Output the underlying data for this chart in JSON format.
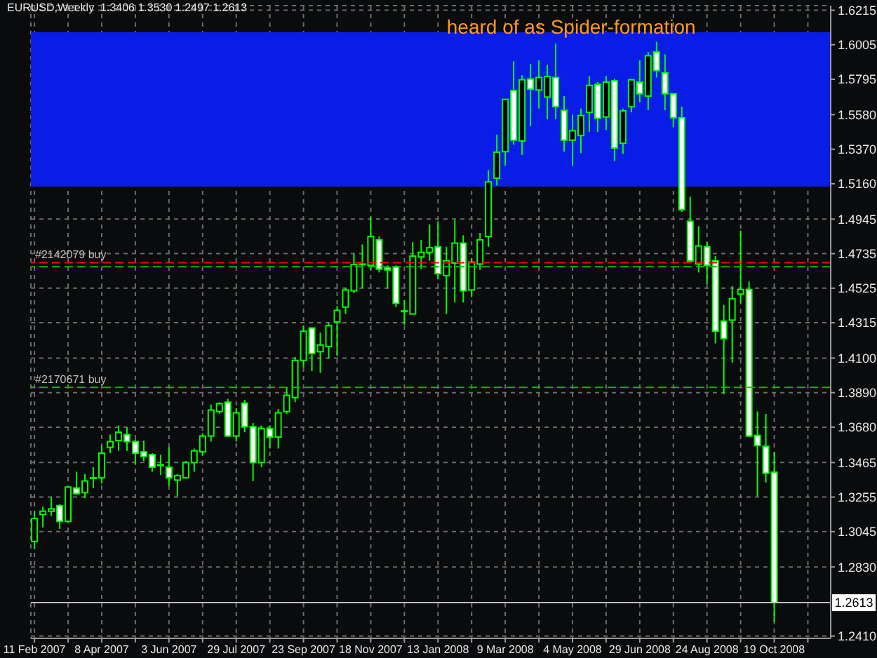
{
  "chart_data": {
    "type": "candlestick",
    "title": "EURUSD,Weekly  1.3406 1.3530 1.2497 1.2613",
    "x": [
      "2007-02-11",
      "2007-02-18",
      "2007-02-25",
      "2007-03-04",
      "2007-03-11",
      "2007-03-18",
      "2007-03-25",
      "2007-04-01",
      "2007-04-08",
      "2007-04-15",
      "2007-04-22",
      "2007-04-29",
      "2007-05-06",
      "2007-05-13",
      "2007-05-20",
      "2007-05-27",
      "2007-06-03",
      "2007-06-10",
      "2007-06-17",
      "2007-06-24",
      "2007-07-01",
      "2007-07-08",
      "2007-07-15",
      "2007-07-22",
      "2007-07-29",
      "2007-08-05",
      "2007-08-12",
      "2007-08-19",
      "2007-08-26",
      "2007-09-02",
      "2007-09-09",
      "2007-09-16",
      "2007-09-23",
      "2007-09-30",
      "2007-10-07",
      "2007-10-14",
      "2007-10-21",
      "2007-10-28",
      "2007-11-04",
      "2007-11-11",
      "2007-11-18",
      "2007-11-25",
      "2007-12-02",
      "2007-12-09",
      "2007-12-16",
      "2007-12-23",
      "2007-12-30",
      "2008-01-06",
      "2008-01-13",
      "2008-01-20",
      "2008-01-27",
      "2008-02-03",
      "2008-02-10",
      "2008-02-17",
      "2008-02-24",
      "2008-03-02",
      "2008-03-09",
      "2008-03-16",
      "2008-03-23",
      "2008-03-30",
      "2008-04-06",
      "2008-04-13",
      "2008-04-20",
      "2008-04-27",
      "2008-05-04",
      "2008-05-11",
      "2008-05-18",
      "2008-05-25",
      "2008-06-01",
      "2008-06-08",
      "2008-06-15",
      "2008-06-22",
      "2008-06-29",
      "2008-07-06",
      "2008-07-13",
      "2008-07-20",
      "2008-07-27",
      "2008-08-03",
      "2008-08-10",
      "2008-08-17",
      "2008-08-24",
      "2008-08-31",
      "2008-09-07",
      "2008-09-14",
      "2008-09-21",
      "2008-09-28",
      "2008-10-05",
      "2008-10-12",
      "2008-10-19"
    ],
    "ohlc": [
      [
        1.2985,
        1.3169,
        1.2938,
        1.3125
      ],
      [
        1.3149,
        1.3197,
        1.3071,
        1.3169
      ],
      [
        1.3169,
        1.3254,
        1.3141,
        1.3183
      ],
      [
        1.3203,
        1.3212,
        1.3062,
        1.3107
      ],
      [
        1.3107,
        1.332,
        1.3107,
        1.3316
      ],
      [
        1.331,
        1.3409,
        1.3268,
        1.3276
      ],
      [
        1.3282,
        1.3395,
        1.3248,
        1.3353
      ],
      [
        1.337,
        1.3437,
        1.331,
        1.3373
      ],
      [
        1.3372,
        1.357,
        1.3338,
        1.3522
      ],
      [
        1.3558,
        1.3635,
        1.3522,
        1.3592
      ],
      [
        1.3598,
        1.3691,
        1.3536,
        1.3649
      ],
      [
        1.3635,
        1.3677,
        1.3536,
        1.3592
      ],
      [
        1.3592,
        1.3606,
        1.3451,
        1.3522
      ],
      [
        1.353,
        1.3598,
        1.3474,
        1.3502
      ],
      [
        1.3513,
        1.3522,
        1.3409,
        1.3437
      ],
      [
        1.3451,
        1.3513,
        1.3389,
        1.3446
      ],
      [
        1.3437,
        1.3558,
        1.3324,
        1.3372
      ],
      [
        1.3358,
        1.3395,
        1.3259,
        1.3386
      ],
      [
        1.3372,
        1.3474,
        1.3367,
        1.3465
      ],
      [
        1.3465,
        1.355,
        1.3409,
        1.3536
      ],
      [
        1.353,
        1.3643,
        1.3508,
        1.3626
      ],
      [
        1.3626,
        1.3818,
        1.3592,
        1.3784
      ],
      [
        1.3775,
        1.3832,
        1.3761,
        1.3823
      ],
      [
        1.3832,
        1.3852,
        1.362,
        1.3626
      ],
      [
        1.3626,
        1.3795,
        1.3592,
        1.3767
      ],
      [
        1.3826,
        1.3846,
        1.3649,
        1.3683
      ],
      [
        1.3683,
        1.3705,
        1.3352,
        1.3465
      ],
      [
        1.3465,
        1.369,
        1.3437,
        1.3671
      ],
      [
        1.3671,
        1.3691,
        1.355,
        1.362
      ],
      [
        1.362,
        1.379,
        1.355,
        1.3767
      ],
      [
        1.3775,
        1.3925,
        1.3761,
        1.3874
      ],
      [
        1.386,
        1.4106,
        1.3832,
        1.4086
      ],
      [
        1.4086,
        1.4297,
        1.4043,
        1.4263
      ],
      [
        1.4283,
        1.4283,
        1.4021,
        1.4128
      ],
      [
        1.4139,
        1.4255,
        1.401,
        1.4179
      ],
      [
        1.417,
        1.4311,
        1.41,
        1.4297
      ],
      [
        1.432,
        1.4416,
        1.4114,
        1.439
      ],
      [
        1.441,
        1.4528,
        1.4368,
        1.4514
      ],
      [
        1.4509,
        1.4734,
        1.4495,
        1.4669
      ],
      [
        1.4669,
        1.4791,
        1.4523,
        1.4672
      ],
      [
        1.4664,
        1.496,
        1.4636,
        1.4839
      ],
      [
        1.4819,
        1.4839,
        1.4621,
        1.4641
      ],
      [
        1.465,
        1.4664,
        1.4523,
        1.4636
      ],
      [
        1.4655,
        1.4664,
        1.441,
        1.4433
      ],
      [
        1.4387,
        1.4452,
        1.4303,
        1.4384
      ],
      [
        1.4368,
        1.4805,
        1.4368,
        1.472
      ],
      [
        1.4715,
        1.4819,
        1.4641,
        1.4743
      ],
      [
        1.4743,
        1.4912,
        1.4692,
        1.4771
      ],
      [
        1.4777,
        1.4932,
        1.4579,
        1.4613
      ],
      [
        1.4602,
        1.4777,
        1.4368,
        1.4692
      ],
      [
        1.4678,
        1.494,
        1.4438,
        1.4799
      ],
      [
        1.4799,
        1.4847,
        1.4438,
        1.4509
      ],
      [
        1.4514,
        1.4706,
        1.4472,
        1.4684
      ],
      [
        1.4672,
        1.4861,
        1.4636,
        1.4819
      ],
      [
        1.4839,
        1.5242,
        1.4777,
        1.5171
      ],
      [
        1.5194,
        1.5459,
        1.5149,
        1.5352
      ],
      [
        1.5355,
        1.5673,
        1.527,
        1.5673
      ],
      [
        1.5727,
        1.5905,
        1.5397,
        1.5425
      ],
      [
        1.542,
        1.582,
        1.5335,
        1.5792
      ],
      [
        1.5797,
        1.589,
        1.551,
        1.5735
      ],
      [
        1.573,
        1.591,
        1.5617,
        1.5806
      ],
      [
        1.5687,
        1.5882,
        1.5552,
        1.5812
      ],
      [
        1.5806,
        1.6012,
        1.5552,
        1.5628
      ],
      [
        1.5606,
        1.5693,
        1.5355,
        1.5425
      ],
      [
        1.5425,
        1.558,
        1.527,
        1.5482
      ],
      [
        1.5453,
        1.5617,
        1.5346,
        1.5575
      ],
      [
        1.5594,
        1.5814,
        1.5476,
        1.5758
      ],
      [
        1.5764,
        1.5778,
        1.5476,
        1.5558
      ],
      [
        1.5566,
        1.5814,
        1.5487,
        1.5778
      ],
      [
        1.5786,
        1.5798,
        1.5298,
        1.5377
      ],
      [
        1.5406,
        1.5617,
        1.5341,
        1.5603
      ],
      [
        1.5628,
        1.5798,
        1.5594,
        1.5792
      ],
      [
        1.5778,
        1.591,
        1.5656,
        1.5707
      ],
      [
        1.5693,
        1.5961,
        1.5608,
        1.5938
      ],
      [
        1.5961,
        1.6023,
        1.5806,
        1.5848
      ],
      [
        1.5834,
        1.5947,
        1.5608,
        1.5707
      ],
      [
        1.5707,
        1.5707,
        1.5504,
        1.5561
      ],
      [
        1.5561,
        1.5628,
        1.499,
        1.5002
      ],
      [
        1.4932,
        1.5081,
        1.4684,
        1.469
      ],
      [
        1.4672,
        1.4903,
        1.4621,
        1.4782
      ],
      [
        1.4777,
        1.4805,
        1.4551,
        1.4664
      ],
      [
        1.4692,
        1.472,
        1.419,
        1.4263
      ],
      [
        1.4325,
        1.4424,
        1.388,
        1.4218
      ],
      [
        1.4331,
        1.4537,
        1.4072,
        1.4461
      ],
      [
        1.4489,
        1.4875,
        1.4433,
        1.4517
      ],
      [
        1.4517,
        1.4565,
        1.362,
        1.3626
      ],
      [
        1.363,
        1.3776,
        1.3259,
        1.3568
      ],
      [
        1.3564,
        1.3761,
        1.3344,
        1.34
      ],
      [
        1.3406,
        1.353,
        1.2497,
        1.2613
      ]
    ],
    "color": "#00ff00",
    "colors": [
      "#000000",
      "#000000",
      "#000000",
      "#ffffff",
      "#000000",
      "#ffffff",
      "#000000",
      "#000000",
      "#000000",
      "#000000",
      "#000000",
      "#ffffff",
      "#ffffff",
      "#ffffff",
      "#ffffff",
      "#ffffff",
      "#ffffff",
      "#000000",
      "#000000",
      "#000000",
      "#000000",
      "#000000",
      "#000000",
      "#ffffff",
      "#000000",
      "#ffffff",
      "#ffffff",
      "#000000",
      "#ffffff",
      "#000000",
      "#000000",
      "#000000",
      "#000000",
      "#ffffff",
      "#000000",
      "#000000",
      "#000000",
      "#000000",
      "#000000",
      "#000000",
      "#000000",
      "#ffffff",
      "#ffffff",
      "#ffffff",
      "#ffffff",
      "#000000",
      "#000000",
      "#000000",
      "#ffffff",
      "#000000",
      "#000000",
      "#ffffff",
      "#000000",
      "#000000",
      "#000000",
      "#000000",
      "#000000",
      "#ffffff",
      "#000000",
      "#ffffff",
      "#000000",
      "#000000",
      "#ffffff",
      "#ffffff",
      "#000000",
      "#000000",
      "#000000",
      "#ffffff",
      "#000000",
      "#ffffff",
      "#000000",
      "#000000",
      "#ffffff",
      "#000000",
      "#ffffff",
      "#ffffff",
      "#ffffff",
      "#ffffff",
      "#ffffff",
      "#000000",
      "#ffffff",
      "#ffffff",
      "#ffffff",
      "#000000",
      "#000000",
      "#ffffff",
      "#ffffff",
      "#ffffff",
      "#ffffff"
    ],
    "xlim": [
      "2007-02-08",
      "2008-12-05"
    ],
    "xticks": [
      {
        "value": "2007-02-11",
        "label": "11 Feb 2007"
      },
      {
        "value": "2007-03-11",
        "label": null
      },
      {
        "value": "2007-04-08",
        "label": "8 Apr 2007"
      },
      {
        "value": "2007-05-06",
        "label": null
      },
      {
        "value": "2007-06-03",
        "label": "3 Jun 2007"
      },
      {
        "value": "2007-07-01",
        "label": null
      },
      {
        "value": "2007-07-29",
        "label": "29 Jul 2007"
      },
      {
        "value": "2007-08-26",
        "label": null
      },
      {
        "value": "2007-09-23",
        "label": "23 Sep 2007"
      },
      {
        "value": "2007-10-21",
        "label": null
      },
      {
        "value": "2007-11-18",
        "label": "18 Nov 2007"
      },
      {
        "value": "2007-12-16",
        "label": null
      },
      {
        "value": "2008-01-13",
        "label": "13 Jan 2008"
      },
      {
        "value": "2008-02-10",
        "label": null
      },
      {
        "value": "2008-03-09",
        "label": "9 Mar 2008"
      },
      {
        "value": "2008-04-06",
        "label": null
      },
      {
        "value": "2008-05-04",
        "label": "4 May 2008"
      },
      {
        "value": "2008-06-01",
        "label": null
      },
      {
        "value": "2008-06-29",
        "label": "29 Jun 2008"
      },
      {
        "value": "2008-07-27",
        "label": null
      },
      {
        "value": "2008-08-24",
        "label": "24 Aug 2008"
      },
      {
        "value": "2008-09-21",
        "label": null
      },
      {
        "value": "2008-10-19",
        "label": "19 Oct 2008"
      },
      {
        "value": "2008-11-16",
        "label": null
      }
    ],
    "ylim": [
      1.2396,
      1.6243
    ],
    "yticks": [
      1.6215,
      1.6005,
      1.5795,
      {
        "value": 1.558,
        "label": "1.5580"
      },
      {
        "value": 1.537,
        "label": "1.5370"
      },
      {
        "value": 1.516,
        "label": "1.5160"
      },
      1.4945,
      1.4735,
      1.4525,
      1.4315,
      {
        "value": 1.41,
        "label": "1.4100"
      },
      {
        "value": 1.389,
        "label": "1.3890"
      },
      {
        "value": 1.368,
        "label": "1.3680"
      },
      1.3465,
      1.3255,
      1.3045,
      {
        "value": 1.283,
        "label": "1.2830"
      },
      {
        "value": 1.241,
        "label": "1.2410"
      }
    ],
    "grid": true,
    "ref_lines": [
      {
        "axis": "y",
        "value": 1.468,
        "label": "#2142079 buy",
        "color": "#ff0000",
        "line_style": "dashed"
      },
      {
        "axis": "y",
        "value": 1.4655,
        "color": "#00c000",
        "line_style": "dashed"
      },
      {
        "axis": "y",
        "value": 1.3922,
        "label": "#2170671 buy",
        "color": "#00c000",
        "line_style": "dashed"
      },
      {
        "axis": "y",
        "value": 1.2613,
        "label": "1.2613",
        "color": "#c0c0c0",
        "line_style": "solid"
      }
    ],
    "bands": [
      {
        "axis": "y",
        "from": 1.5143,
        "to": 1.6081,
        "label": "heard of as Spider-formation",
        "color": "#0a1de6"
      }
    ]
  }
}
